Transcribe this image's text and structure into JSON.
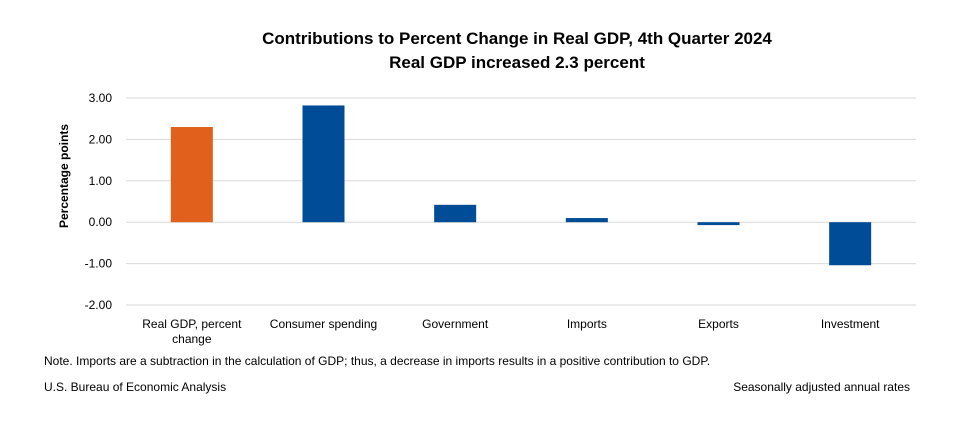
{
  "chart_data": {
    "type": "bar",
    "title": "Contributions to Percent Change in Real GDP, 4th Quarter 2024",
    "subtitle": "Real GDP increased 2.3 percent",
    "ylabel": "Percentage points",
    "xlabel": "",
    "ylim": [
      -2.0,
      3.0
    ],
    "yticks": [
      "3.00",
      "2.00",
      "1.00",
      "0.00",
      "-1.00",
      "-2.00"
    ],
    "categories": [
      [
        "Real GDP, percent",
        "change"
      ],
      [
        "Consumer spending"
      ],
      [
        "Government"
      ],
      [
        "Imports"
      ],
      [
        "Exports"
      ],
      [
        "Investment"
      ]
    ],
    "values": [
      2.3,
      2.82,
      0.42,
      0.1,
      -0.07,
      -1.04
    ],
    "colors": [
      "#E0601C",
      "#004C97",
      "#004C97",
      "#004C97",
      "#004C97",
      "#004C97"
    ],
    "grid": true,
    "legend": "none"
  },
  "footer": {
    "note": "Note. Imports are a subtraction in the calculation of GDP; thus, a decrease in imports results in a positive contribution to GDP.",
    "source": "U.S. Bureau of Economic Analysis",
    "rates": "Seasonally adjusted annual rates"
  }
}
